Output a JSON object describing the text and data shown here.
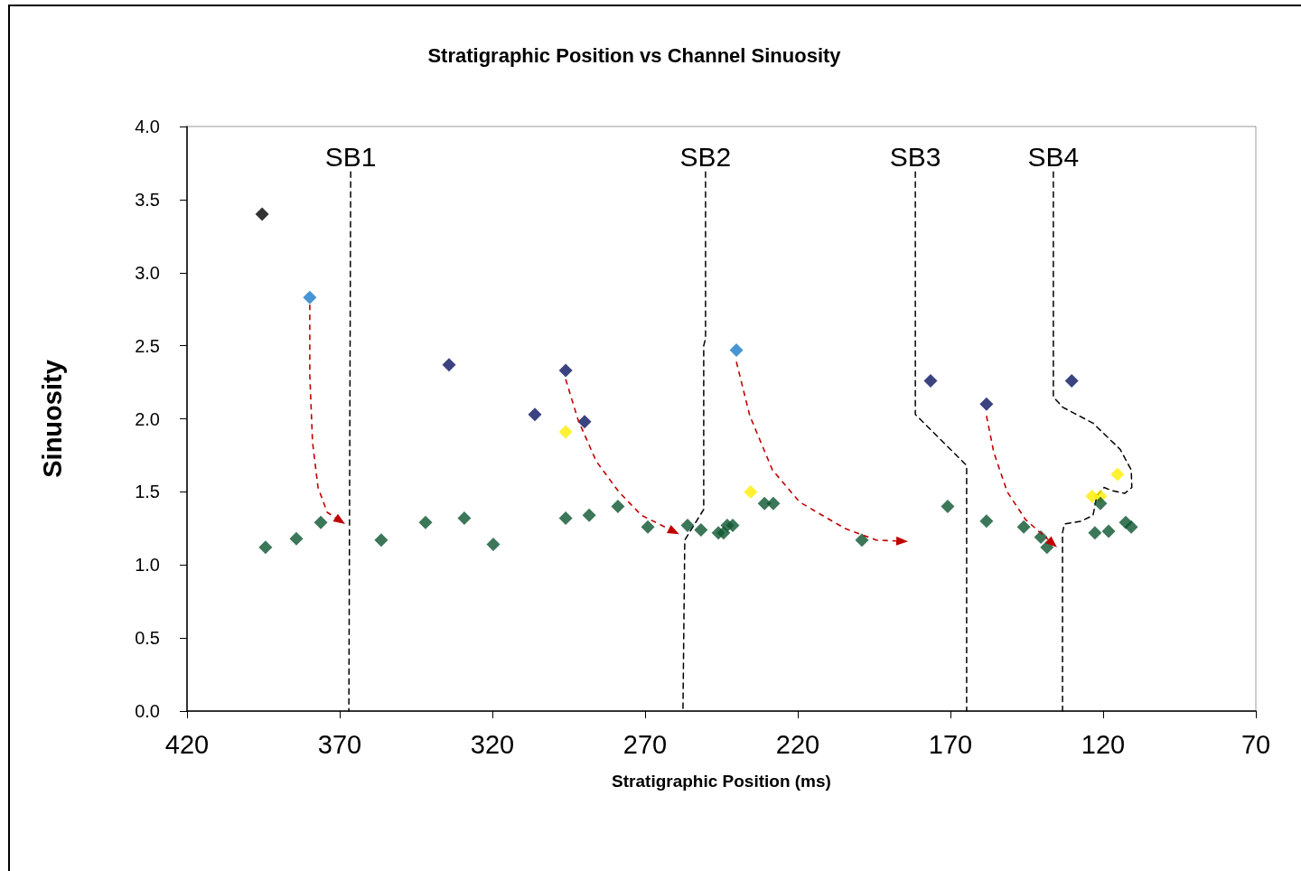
{
  "chart_data": {
    "type": "scatter",
    "title": "Stratigraphic Position vs Channel Sinuosity",
    "xlabel": "Stratigraphic Position (ms)",
    "ylabel": "Sinuosity",
    "xlim": [
      420,
      70
    ],
    "xticks": [
      420,
      370,
      320,
      270,
      220,
      170,
      120,
      70
    ],
    "ylim": [
      0,
      4
    ],
    "yticks": [
      {
        "value": 0,
        "label": "0.0"
      },
      {
        "value": 0.5,
        "label": "0.5"
      },
      {
        "value": 1,
        "label": "1.0"
      },
      {
        "value": 1.5,
        "label": "1.5"
      },
      {
        "value": 2,
        "label": "2.0"
      },
      {
        "value": 2.5,
        "label": "2.5"
      },
      {
        "value": 3,
        "label": "3.0"
      },
      {
        "value": 3.5,
        "label": "3.5"
      },
      {
        "value": 4,
        "label": "4.0"
      }
    ],
    "grid": false,
    "legend": false,
    "marker": "diamond",
    "series": [
      {
        "color": "#000000",
        "x": [
          395.4
        ],
        "values": [
          3.4
        ]
      },
      {
        "color": "#1a7ac8",
        "x": [
          379.8,
          240.1
        ],
        "values": [
          2.83,
          2.47
        ]
      },
      {
        "color": "#0a1560",
        "x": [
          334.2,
          306.1,
          296.0,
          289.8,
          176.5,
          158.2,
          130.3
        ],
        "values": [
          2.37,
          2.03,
          2.33,
          1.98,
          2.26,
          2.1,
          2.26
        ]
      },
      {
        "color": "#ffee00",
        "x": [
          296.0,
          235.4,
          123.6,
          120.9,
          115.3
        ],
        "values": [
          1.91,
          1.5,
          1.47,
          1.47,
          1.62
        ]
      },
      {
        "color": "#0b5530",
        "x": [
          394.3,
          384.2,
          376.2,
          356.4,
          341.9,
          329.2,
          319.7,
          296.0,
          288.3,
          278.9,
          269.1,
          256.1,
          251.7,
          246.0,
          244.3,
          243.1,
          241.3,
          230.9,
          228.0,
          199.0,
          170.9,
          158.2,
          146.0,
          140.4,
          138.4,
          122.7,
          120.9,
          118.2,
          112.6,
          110.8
        ],
        "values": [
          1.12,
          1.18,
          1.29,
          1.17,
          1.29,
          1.32,
          1.14,
          1.32,
          1.34,
          1.4,
          1.26,
          1.27,
          1.24,
          1.22,
          1.22,
          1.27,
          1.27,
          1.42,
          1.42,
          1.17,
          1.4,
          1.3,
          1.26,
          1.19,
          1.12,
          1.22,
          1.42,
          1.23,
          1.29,
          1.26
        ]
      },
      {
        "type": "line",
        "name": "SB1",
        "color": "#000000",
        "line_style": "dashed",
        "marker": "none",
        "x": [
          366.4,
          367.0
        ],
        "values": [
          3.69,
          0
        ]
      },
      {
        "type": "line",
        "name": "SB2",
        "color": "#000000",
        "line_style": "dashed",
        "marker": "none",
        "x": [
          250.2,
          250.2,
          250.8,
          250.8,
          257.0,
          257.6
        ],
        "values": [
          3.69,
          2.55,
          2.5,
          1.38,
          1.17,
          0
        ]
      },
      {
        "type": "line",
        "name": "SB3",
        "color": "#000000",
        "line_style": "dashed",
        "marker": "none",
        "x": [
          181.5,
          181.5,
          164.7,
          164.7
        ],
        "values": [
          3.69,
          2.03,
          1.68,
          0
        ]
      },
      {
        "type": "line",
        "name": "SB4",
        "color": "#000000",
        "line_style": "dashed",
        "marker": "none",
        "x": [
          136.3,
          136.3,
          133.3,
          123.3,
          114.4,
          110.8,
          110.6,
          112.9,
          117.3,
          119.7,
          122.1,
          123.3,
          127.1,
          132.7,
          133.3,
          133.3
        ],
        "values": [
          3.69,
          2.15,
          2.08,
          1.97,
          1.79,
          1.65,
          1.53,
          1.49,
          1.51,
          1.53,
          1.47,
          1.34,
          1.3,
          1.28,
          1.22,
          0
        ]
      }
    ]
  }
}
